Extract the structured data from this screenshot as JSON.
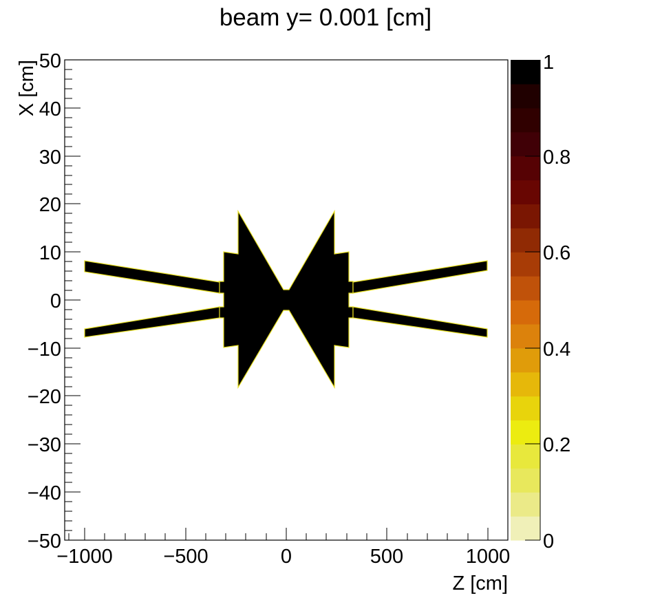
{
  "title": "beam y=  0.001 [cm]",
  "chart_data": {
    "type": "heatmap",
    "title": "beam y=  0.001 [cm]",
    "xlabel": "Z [cm]",
    "ylabel": "X [cm]",
    "xlim": [
      -1100,
      1100
    ],
    "ylim": [
      -50,
      50
    ],
    "xticks": [
      -1000,
      -500,
      0,
      500,
      1000
    ],
    "xtick_labels": [
      "−1000",
      "−500",
      "0",
      "500",
      "1000"
    ],
    "yticks": [
      50,
      40,
      30,
      20,
      10,
      0,
      -10,
      -20,
      -30,
      -40,
      -50
    ],
    "ytick_labels": [
      "50",
      "40",
      "30",
      "20",
      "10",
      "0",
      "−10",
      "−20",
      "−30",
      "−40",
      "−50"
    ],
    "colorbar": {
      "range": [
        0,
        1
      ],
      "ticks": [
        1,
        0.8,
        0.6,
        0.4,
        0.2,
        0
      ],
      "tick_labels": [
        "1",
        "0.8",
        "0.6",
        "0.4",
        "0.2",
        "0"
      ],
      "palette_bottom_to_top": [
        "#f0f0b8",
        "#ebea88",
        "#e8e85c",
        "#e8e83c",
        "#ecec10",
        "#e8d40c",
        "#e6b80a",
        "#e09c0a",
        "#dc820c",
        "#d66a0a",
        "#c0520a",
        "#a83c06",
        "#902a04",
        "#7a1602",
        "#680602",
        "#560204",
        "#400006",
        "#300000",
        "#200000",
        "#000000"
      ]
    },
    "grid": false,
    "description": "Binary material map (value 1 = black) in Z-X plane at beam y=0.001 cm: central bow-tie cone pair spanning Z about -240..240 cm reaching |X| about 18 cm, stepped collars at Z about +/-310 cm, and two pairs of diverging beam pipes from Z=+/-310 to +/-1000 cm reaching X about +/-7 cm.",
    "shapes": [
      {
        "name": "central-bowtie",
        "z_range": [
          -240,
          240
        ],
        "x_range": [
          -18.5,
          18.5
        ],
        "waist_z": 0,
        "waist_half_width_x": 1.5
      },
      {
        "name": "left-collar",
        "z_range": [
          -310,
          -240
        ],
        "x_range": [
          -10,
          10
        ]
      },
      {
        "name": "right-collar",
        "z_range": [
          240,
          310
        ],
        "x_range": [
          -10,
          10
        ]
      },
      {
        "name": "left-upper-pipe",
        "z": [
          -1000,
          -310
        ],
        "x_center": [
          7,
          2
        ]
      },
      {
        "name": "left-lower-pipe",
        "z": [
          -1000,
          -310
        ],
        "x_center": [
          -7,
          -2
        ]
      },
      {
        "name": "right-upper-pipe",
        "z": [
          310,
          1000
        ],
        "x_center": [
          2,
          7
        ]
      },
      {
        "name": "right-lower-pipe",
        "z": [
          310,
          1000
        ],
        "x_center": [
          -2,
          -7
        ]
      }
    ]
  },
  "colors": {
    "fill": "#000000",
    "edge_highlight": "#e8e020",
    "frame": "#000000",
    "background": "#ffffff"
  }
}
